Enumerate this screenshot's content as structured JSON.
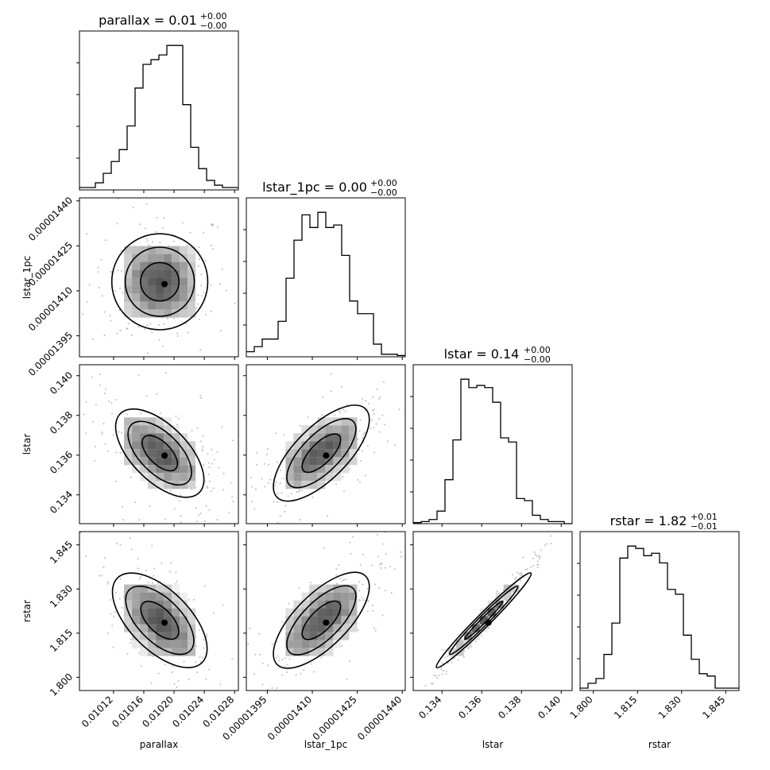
{
  "chart_data": {
    "type": "corner",
    "parameters": [
      {
        "name": "parallax",
        "xlabel": "parallax",
        "ylabel": "",
        "title_main": "parallax = 0.01",
        "title_sup": "+0.00",
        "title_sub": "−0.00",
        "range": [
          0.010075,
          0.010285
        ],
        "ticks": [
          0.01012,
          0.01016,
          0.0102,
          0.01024,
          0.01028
        ],
        "tick_labels": [
          "0.01012",
          "0.01016",
          "0.01020",
          "0.01024",
          "0.01028"
        ],
        "hist_bins": 20,
        "hist_counts": [
          1,
          1,
          3,
          7,
          12,
          17,
          27,
          43,
          53,
          55,
          57,
          61,
          61,
          36,
          18,
          9,
          4,
          2,
          1,
          1
        ]
      },
      {
        "name": "lstar_1pc",
        "xlabel": "lstar_1pc",
        "ylabel": "lstar_1pc",
        "title_main": "lstar_1pc = 0.00",
        "title_sup": "+0.00",
        "title_sub": "−0.00",
        "range": [
          1.388e-05,
          1.441e-05
        ],
        "ticks": [
          1.395e-05,
          1.41e-05,
          1.425e-05,
          1.44e-05
        ],
        "tick_labels": [
          "0.00001395",
          "0.00001410",
          "0.00001425",
          "0.00001440"
        ],
        "hist_bins": 20,
        "hist_counts": [
          2,
          4,
          7,
          7,
          14,
          31,
          46,
          56,
          51,
          57,
          51,
          52,
          40,
          22,
          17,
          17,
          5,
          1,
          1,
          0.5
        ]
      },
      {
        "name": "lstar",
        "xlabel": "lstar",
        "ylabel": "lstar",
        "title_main": "lstar = 0.14",
        "title_sup": "+0.00",
        "title_sub": "−0.00",
        "range": [
          0.13255,
          0.14055
        ],
        "ticks": [
          0.134,
          0.136,
          0.138,
          0.14
        ],
        "tick_labels": [
          "0.134",
          "0.136",
          "0.138",
          "0.140"
        ],
        "hist_bins": 20,
        "hist_counts": [
          0.5,
          1,
          2,
          6,
          21,
          40,
          69,
          65,
          66,
          65,
          58,
          41,
          39,
          12,
          11,
          4,
          2,
          1,
          1,
          0
        ]
      },
      {
        "name": "rstar",
        "xlabel": "rstar",
        "ylabel": "rstar",
        "title_main": "rstar = 1.82",
        "title_sup": "+0.01",
        "title_sub": "−0.01",
        "range": [
          1.7955,
          1.8495
        ],
        "ticks": [
          1.8,
          1.815,
          1.83,
          1.845
        ],
        "tick_labels": [
          "1.800",
          "1.815",
          "1.830",
          "1.845"
        ],
        "hist_bins": 20,
        "hist_counts": [
          1,
          3,
          5,
          15,
          28,
          55,
          60,
          59,
          56,
          57,
          53,
          42,
          40,
          23,
          13,
          7,
          6,
          1,
          1,
          1
        ]
      }
    ],
    "correlations": {
      "1_0": 0.0,
      "2_0": -0.6,
      "2_1": 0.7,
      "3_0": -0.6,
      "3_1": 0.7,
      "3_2": 0.99
    },
    "contour_levels": 3,
    "grid": false,
    "legend": "none"
  }
}
